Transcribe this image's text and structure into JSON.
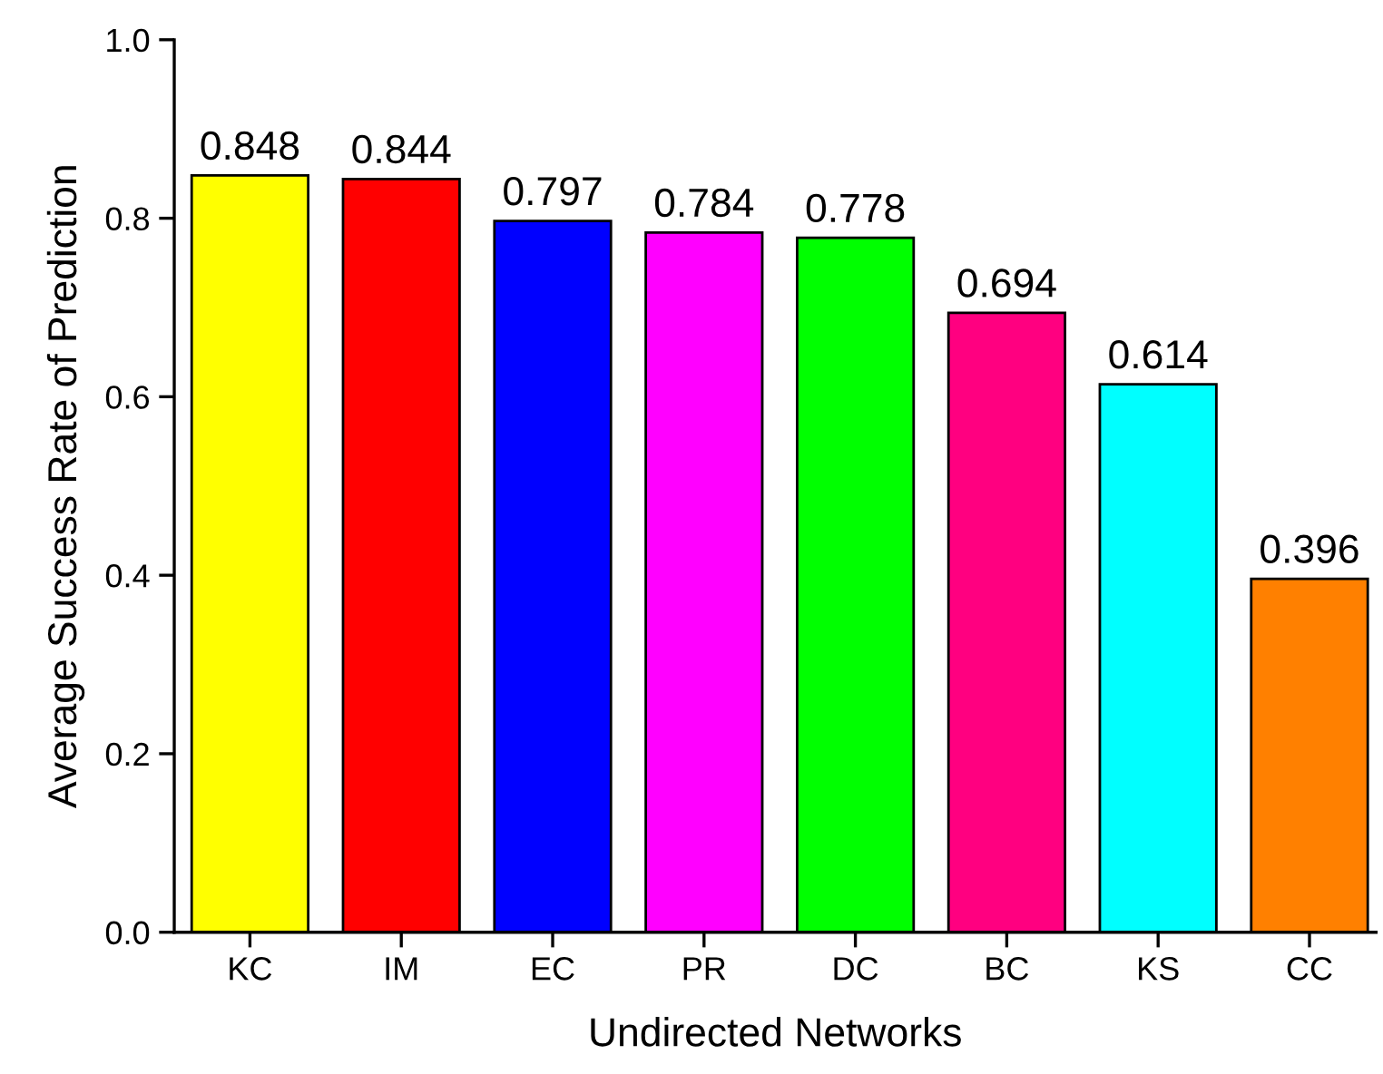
{
  "chart_data": {
    "type": "bar",
    "xlabel": "Undirected Networks",
    "ylabel": "Average Success Rate of Prediction",
    "categories": [
      "KC",
      "IM",
      "EC",
      "PR",
      "DC",
      "BC",
      "KS",
      "CC"
    ],
    "values": [
      0.848,
      0.844,
      0.797,
      0.784,
      0.778,
      0.694,
      0.614,
      0.396
    ],
    "colors": [
      "#ffff00",
      "#ff0000",
      "#0000ff",
      "#ff00ff",
      "#00ff00",
      "#ff0080",
      "#00ffff",
      "#ff8000"
    ],
    "ylim": [
      0,
      1.0
    ],
    "yticks": [
      {
        "value": 0,
        "label": "0.0"
      },
      0.2,
      0.4,
      0.6,
      0.8,
      {
        "value": 1.0,
        "label": "1.0"
      }
    ],
    "data_labels": true,
    "grid": false,
    "legend": false
  }
}
